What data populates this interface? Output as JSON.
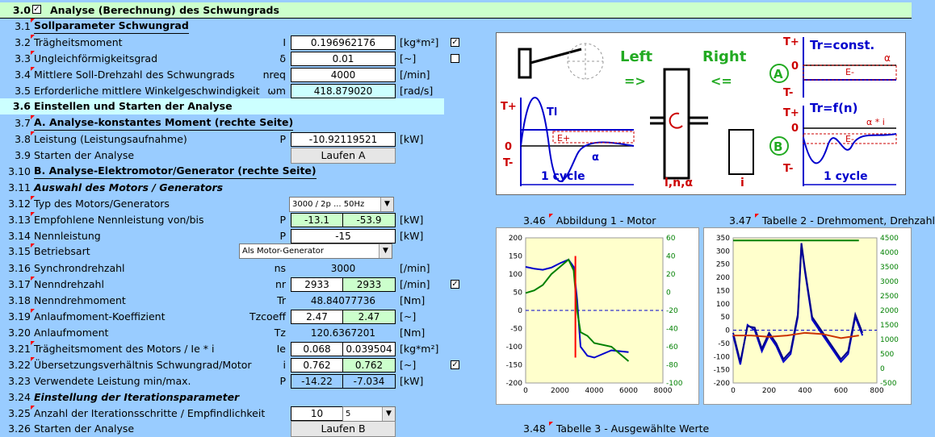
{
  "title": {
    "num": "3.0",
    "text": "Analyse (Berechnung) des Schwungrads"
  },
  "s31": {
    "num": "3.1",
    "text": "Sollparameter Schwungrad"
  },
  "r32": {
    "num": "3.2",
    "label": "Trägheitsmoment",
    "sym": "I",
    "value": "0.196962176",
    "unit": "[kg*m²]"
  },
  "r33": {
    "num": "3.3",
    "label": "Ungleichförmigkeitsgrad",
    "sym": "δ",
    "value": "0.01",
    "unit": "[~]"
  },
  "r34": {
    "num": "3.4",
    "label": "Mittlere Soll-Drehzahl des Schwungrads",
    "sym": "nreq",
    "value": "4000",
    "unit": "[/min]"
  },
  "r35": {
    "num": "3.5",
    "label": "Erforderliche mittlere Winkelgeschwindigkeit",
    "sym": "ωm",
    "value": "418.879020",
    "unit": "[rad/s]"
  },
  "s36": {
    "num": "3.6",
    "text": "Einstellen und Starten der Analyse"
  },
  "s37": {
    "num": "3.7",
    "text": "A. Analyse-konstantes Moment (rechte Seite)"
  },
  "r38": {
    "num": "3.8",
    "label": "Leistung (Leistungsaufnahme)",
    "sym": "P",
    "value": "-10.92119521",
    "unit": "[kW]"
  },
  "r39": {
    "num": "3.9",
    "label": "Starten der Analyse",
    "button": "Laufen A"
  },
  "s310": {
    "num": "3.10",
    "text": "B. Analyse-Elektromotor/Generator (rechte Seite)"
  },
  "s311": {
    "num": "3.11",
    "text": "Auswahl des Motors / Generators"
  },
  "r312": {
    "num": "3.12",
    "label": "Typ des Motors/Generators",
    "select": "3000 / 2p ... 50Hz"
  },
  "r313": {
    "num": "3.13",
    "label": "Empfohlene Nennleistung von/bis",
    "sym": "P",
    "v1": "-13.1",
    "v2": "-53.9",
    "unit": "[kW]"
  },
  "r314": {
    "num": "3.14",
    "label": "Nennleistung",
    "sym": "P",
    "value": "-15",
    "unit": "[kW]"
  },
  "r315": {
    "num": "3.15",
    "label": "Betriebsart",
    "select": "Als Motor-Generator"
  },
  "r316": {
    "num": "3.16",
    "label": "Synchrondrehzahl",
    "sym": "ns",
    "value": "3000",
    "unit": "[/min]"
  },
  "r317": {
    "num": "3.17",
    "label": "Nenndrehzahl",
    "sym": "nr",
    "v1": "2933",
    "v2": "2933",
    "unit": "[/min]"
  },
  "r318": {
    "num": "3.18",
    "label": "Nenndrehmoment",
    "sym": "Tr",
    "value": "48.84077736",
    "unit": "[Nm]"
  },
  "r319": {
    "num": "3.19",
    "label": "Anlaufmoment-Koeffizient",
    "sym": "Tzcoeff",
    "v1": "2.47",
    "v2": "2.47",
    "unit": "[~]"
  },
  "r320": {
    "num": "3.20",
    "label": "Anlaufmoment",
    "sym": "Tz",
    "value": "120.6367201",
    "unit": "[Nm]"
  },
  "r321": {
    "num": "3.21",
    "label": "Trägheitsmoment des Motors / Ie * i",
    "sym": "Ie",
    "v1": "0.068",
    "v2": "0.039504",
    "unit": "[kg*m²]"
  },
  "r322": {
    "num": "3.22",
    "label": "Übersetzungsverhältnis Schwungrad/Motor",
    "sym": "i",
    "v1": "0.762",
    "v2": "0.762",
    "unit": "[~]"
  },
  "r323": {
    "num": "3.23",
    "label": "Verwendete Leistung min/max.",
    "sym": "P",
    "v1": "-14.22",
    "v2": "-7.034",
    "unit": "[kW]"
  },
  "s324": {
    "num": "3.24",
    "text": "Einstellung der Iterationsparameter"
  },
  "r325": {
    "num": "3.25",
    "label": "Anzahl der Iterationsschritte / Empfindlichkeit",
    "value": "10",
    "select": "5"
  },
  "r326": {
    "num": "3.26",
    "label": "Starten der Analyse",
    "button": "Laufen B"
  },
  "fig346": {
    "num": "3.46",
    "text": "Abbildung 1 - Motor"
  },
  "fig347": {
    "num": "3.47",
    "text": "Tabelle 2 - Drehmoment, Drehzahl"
  },
  "fig348": {
    "num": "3.48",
    "text": "Tabelle 3 - Ausgewählte Werte"
  },
  "diagram": {
    "left": "Left",
    "right": "Right",
    "l_arrow": "=>",
    "r_arrow": "<=",
    "tr_const": "Tr=const.",
    "tr_fn": "Tr=f(n)",
    "alpha": "α",
    "alpha_i": "α * i",
    "tplus": "T+",
    "tminus": "T-",
    "zero": "0",
    "cycle": "1 cycle",
    "tl": "Tl",
    "eplus": "E+",
    "eminus": "E-",
    "lna": "l,n,α",
    "i": "i",
    "A": "A",
    "B": "B"
  },
  "chart_data": [
    {
      "type": "line",
      "title": "",
      "xticks": [
        "0",
        "2000",
        "4000",
        "6000",
        "8000"
      ],
      "yticks_left": [
        "200",
        "150",
        "100",
        "50",
        "0",
        "-50",
        "-100",
        "-150",
        "-200"
      ],
      "yticks_right": [
        "60",
        "40",
        "20",
        "0",
        "-20",
        "-40",
        "-60",
        "-80",
        "-100"
      ],
      "xlim": [
        0,
        8000
      ],
      "ylim_left": [
        -200,
        200
      ],
      "ylim_right": [
        -100,
        60
      ],
      "series": [
        {
          "color": "#0000cc",
          "x": [
            0,
            500,
            1000,
            1500,
            2000,
            2500,
            2800,
            3000,
            3200,
            3600,
            4000,
            5000,
            6000
          ],
          "y": [
            120,
            115,
            112,
            118,
            130,
            140,
            120,
            30,
            -100,
            -125,
            -130,
            -110,
            -115
          ]
        },
        {
          "color": "#008000",
          "x": [
            0,
            500,
            1000,
            1500,
            2000,
            2500,
            2800,
            3000,
            3200,
            3600,
            4000,
            5000,
            6000
          ],
          "y": [
            48,
            55,
            70,
            100,
            120,
            140,
            110,
            0,
            -60,
            -70,
            -90,
            -100,
            -140
          ]
        },
        {
          "color": "#ff0000",
          "x": [
            2900,
            2900
          ],
          "y": [
            -130,
            150
          ]
        }
      ]
    },
    {
      "type": "line",
      "title": "",
      "xticks": [
        "0",
        "200",
        "400",
        "600",
        "800"
      ],
      "yticks_left": [
        "350",
        "300",
        "250",
        "200",
        "150",
        "100",
        "50",
        "0",
        "-50",
        "-100",
        "-150",
        "-200"
      ],
      "yticks_right": [
        "4500",
        "4000",
        "3500",
        "3000",
        "2500",
        "2000",
        "1500",
        "1000",
        "500",
        "0",
        "-500"
      ],
      "xlim": [
        0,
        800
      ],
      "ylim_left": [
        -200,
        350
      ],
      "ylim_right": [
        -500,
        4500
      ],
      "series": [
        {
          "color": "#008000",
          "x": [
            0,
            700
          ],
          "y": [
            340,
            340
          ]
        },
        {
          "color": "#0000cc",
          "x": [
            0,
            40,
            80,
            120,
            160,
            200,
            240,
            280,
            320,
            360,
            380,
            400,
            440,
            480,
            520,
            560,
            600,
            640,
            680,
            720
          ],
          "y": [
            -20,
            -130,
            20,
            0,
            -80,
            -20,
            -60,
            -120,
            -90,
            50,
            320,
            220,
            40,
            0,
            -40,
            -80,
            -120,
            -90,
            50,
            -20
          ]
        },
        {
          "color": "#00008b",
          "x": [
            0,
            40,
            80,
            120,
            160,
            200,
            240,
            280,
            320,
            360,
            380,
            400,
            440,
            480,
            520,
            560,
            600,
            640,
            680,
            720
          ],
          "y": [
            -10,
            -120,
            15,
            10,
            -70,
            -10,
            -50,
            -110,
            -80,
            60,
            330,
            230,
            50,
            10,
            -30,
            -70,
            -110,
            -80,
            60,
            -10
          ]
        },
        {
          "color": "#cc3300",
          "x": [
            0,
            100,
            200,
            300,
            400,
            500,
            600,
            700
          ],
          "y": [
            -20,
            -20,
            -25,
            -20,
            -10,
            -15,
            -30,
            -20
          ]
        }
      ]
    }
  ]
}
